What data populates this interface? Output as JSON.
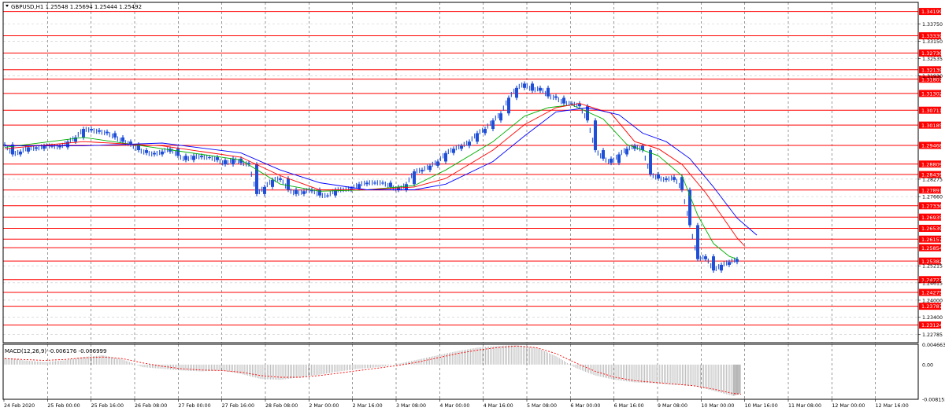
{
  "colors": {
    "background": "#ffffff",
    "frame": "#000000",
    "grid": "#c8c8c8",
    "price_line": "#ff0000",
    "price_tag_bg": "#ff0000",
    "price_tag_text": "#ffffff",
    "candle": "#1f4fd8",
    "ma_fast": "#00b000",
    "ma_mid": "#ff0000",
    "ma_slow": "#0000ff",
    "macd_hist": "#b0b0b0",
    "macd_signal": "#ff0000",
    "text": "#000000"
  },
  "chart_data": [
    {
      "type": "candlestick",
      "title": "GBPUSD,H1  1.25548 1.25694 1.25444 1.25492",
      "symbol": "GBPUSD",
      "timeframe": "H1",
      "ohlc_last": {
        "open": 1.25548,
        "high": 1.25694,
        "low": 1.25444,
        "close": 1.25492
      },
      "grid": true,
      "ylim": [
        1.225,
        1.3452
      ],
      "y_ticks": [
        "1.33750",
        "1.33150",
        "1.32535",
        "1.31930",
        "1.28275",
        "1.27660",
        "1.25215",
        "1.24615",
        "1.24000",
        "1.23400",
        "1.22785"
      ],
      "x_ticks": [
        "24 Feb 2020",
        "25 Feb 00:00",
        "25 Feb 16:00",
        "26 Feb 08:00",
        "27 Feb 00:00",
        "27 Feb 16:00",
        "28 Feb 08:00",
        "2 Mar 00:00",
        "2 Mar 16:00",
        "3 Mar 08:00",
        "4 Mar 00:00",
        "4 Mar 16:00",
        "5 Mar 08:00",
        "6 Mar 00:00",
        "6 Mar 16:00",
        "9 Mar 08:00",
        "10 Mar 00:00",
        "10 Mar 16:00",
        "11 Mar 08:00",
        "12 Mar 00:00",
        "12 Mar 16:00"
      ],
      "horizontal_levels": [
        "1.34199",
        "1.33339",
        "1.32730",
        "1.32139",
        "1.31807",
        "1.31302",
        "1.30711",
        "1.30185",
        "1.29468",
        "1.28809",
        "1.28439",
        "1.27891",
        "1.27336",
        "1.26935",
        "1.26539",
        "1.26157",
        "1.25854",
        "1.25382",
        "1.24727",
        "1.24275",
        "1.23787",
        "1.23124"
      ],
      "price_series": {
        "x": [
          0,
          10,
          20,
          30,
          40,
          50,
          60,
          70,
          80,
          90,
          100,
          110,
          120,
          130,
          140,
          150,
          160,
          170,
          180,
          190,
          200,
          210,
          220,
          230,
          240,
          250,
          260,
          270,
          280,
          290,
          300,
          310,
          320,
          330,
          340,
          350,
          360,
          370,
          380,
          390,
          400,
          410,
          420,
          430,
          440,
          450,
          460,
          470,
          480,
          490,
          500,
          510,
          520,
          530,
          540,
          550,
          560,
          570,
          580,
          590,
          600,
          610,
          620,
          630,
          640,
          650,
          660,
          670,
          680,
          690,
          700,
          710,
          720,
          730,
          740,
          750,
          760,
          770,
          780,
          790,
          800,
          810,
          820,
          830,
          840,
          850,
          860,
          870,
          880,
          890,
          900,
          910,
          920,
          930
        ],
        "y": [
          1.295,
          1.2915,
          1.2925,
          1.294,
          1.2935,
          1.2945,
          1.2945,
          1.294,
          1.296,
          1.2975,
          1.3005,
          1.3,
          1.2995,
          1.299,
          1.2975,
          1.296,
          1.295,
          1.293,
          1.292,
          1.2915,
          1.2925,
          1.2935,
          1.291,
          1.2895,
          1.291,
          1.2905,
          1.2905,
          1.2895,
          1.288,
          1.29,
          1.2885,
          1.288,
          1.2775,
          1.28,
          1.2825,
          1.283,
          1.279,
          1.2775,
          1.2785,
          1.279,
          1.277,
          1.277,
          1.279,
          1.279,
          1.2795,
          1.281,
          1.2815,
          1.2815,
          1.2815,
          1.28,
          1.279,
          1.281,
          1.2855,
          1.286,
          1.2875,
          1.289,
          1.292,
          1.2935,
          1.2945,
          1.296,
          1.299,
          1.3005,
          1.3035,
          1.306,
          1.3115,
          1.315,
          1.3165,
          1.314,
          1.315,
          1.312,
          1.3115,
          1.3095,
          1.3095,
          1.3085,
          1.3035,
          1.293,
          1.29,
          1.2885,
          1.2915,
          1.2935,
          1.2945,
          1.293,
          1.2845,
          1.283,
          1.2825,
          1.2835,
          1.279,
          1.2665,
          1.2545,
          1.2555,
          1.2505,
          1.2525,
          1.2535,
          1.2545
        ]
      },
      "moving_averages": [
        {
          "x": [
            0,
            100,
            200,
            300,
            350,
            400,
            460,
            520,
            560,
            620,
            660,
            690,
            720,
            760,
            790,
            830,
            860,
            880,
            900,
            920,
            930
          ],
          "y": [
            1.294,
            1.2975,
            1.2935,
            1.2895,
            1.281,
            1.2785,
            1.279,
            1.2805,
            1.286,
            1.296,
            1.305,
            1.308,
            1.309,
            1.304,
            1.295,
            1.291,
            1.284,
            1.27,
            1.26,
            1.2555,
            1.2545
          ]
        },
        {
          "x": [
            0,
            100,
            200,
            300,
            350,
            400,
            460,
            520,
            560,
            620,
            660,
            700,
            730,
            770,
            800,
            830,
            860,
            890,
            910,
            930,
            940
          ],
          "y": [
            1.2935,
            1.296,
            1.2945,
            1.2905,
            1.284,
            1.279,
            1.279,
            1.28,
            1.283,
            1.293,
            1.302,
            1.308,
            1.3095,
            1.306,
            1.296,
            1.2935,
            1.288,
            1.278,
            1.27,
            1.262,
            1.259
          ]
        },
        {
          "x": [
            0,
            100,
            200,
            300,
            350,
            400,
            460,
            520,
            560,
            620,
            660,
            700,
            740,
            780,
            810,
            840,
            870,
            900,
            930,
            955
          ],
          "y": [
            1.2945,
            1.2945,
            1.2955,
            1.292,
            1.286,
            1.2815,
            1.279,
            1.279,
            1.281,
            1.289,
            1.298,
            1.3065,
            1.308,
            1.3055,
            1.299,
            1.296,
            1.29,
            1.28,
            1.269,
            1.263
          ]
        }
      ]
    },
    {
      "type": "bar",
      "title": "MACD(12,26,9) -0.006176 -0.006999",
      "ylim": [
        -0.0082,
        0.0048
      ],
      "y_ticks": [
        "0.004663",
        "0.00",
        "-0.008155"
      ],
      "histogram": {
        "x": [
          0,
          25,
          50,
          75,
          100,
          125,
          150,
          175,
          200,
          225,
          250,
          275,
          300,
          325,
          350,
          375,
          400,
          425,
          450,
          475,
          500,
          525,
          550,
          575,
          600,
          625,
          650,
          675,
          700,
          725,
          750,
          775,
          800,
          825,
          850,
          875,
          900,
          925,
          935
        ],
        "y": [
          0.0016,
          0.001,
          0.0006,
          0.001,
          0.0018,
          0.0022,
          0.0012,
          -0.0006,
          -0.001,
          -0.0014,
          -0.0016,
          -0.0014,
          -0.0022,
          -0.0034,
          -0.0036,
          -0.003,
          -0.0024,
          -0.0016,
          -0.001,
          -0.0006,
          0.0002,
          0.0012,
          0.0022,
          0.0032,
          0.004,
          0.0044,
          0.0046,
          0.004,
          0.002,
          -0.0008,
          -0.0026,
          -0.0036,
          -0.0042,
          -0.0044,
          -0.0048,
          -0.005,
          -0.0062,
          -0.0074,
          -0.0068
        ]
      },
      "signal": {
        "x": [
          0,
          25,
          50,
          75,
          100,
          125,
          150,
          175,
          200,
          225,
          250,
          275,
          300,
          325,
          350,
          375,
          400,
          425,
          450,
          475,
          500,
          525,
          550,
          575,
          600,
          625,
          650,
          675,
          700,
          725,
          750,
          775,
          800,
          825,
          850,
          875,
          900,
          925,
          935
        ],
        "y": [
          0.0014,
          0.0012,
          0.001,
          0.0012,
          0.0016,
          0.0018,
          0.0014,
          0.0004,
          -0.0004,
          -0.001,
          -0.0013,
          -0.0014,
          -0.0018,
          -0.0026,
          -0.003,
          -0.003,
          -0.0026,
          -0.002,
          -0.0014,
          -0.0008,
          -0.0002,
          0.0006,
          0.0016,
          0.0026,
          0.0034,
          0.004,
          0.0044,
          0.004,
          0.0026,
          0.0004,
          -0.0016,
          -0.003,
          -0.0038,
          -0.0042,
          -0.0046,
          -0.005,
          -0.0058,
          -0.0068,
          -0.007
        ]
      }
    }
  ]
}
